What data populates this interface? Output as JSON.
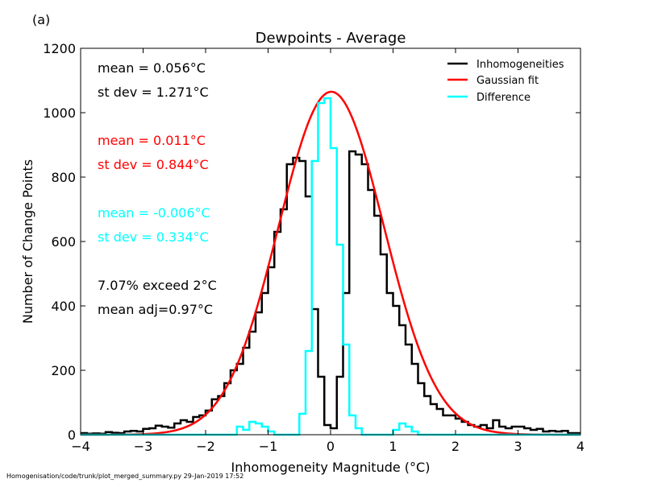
{
  "panel_label": "(a)",
  "footer": "Homogenisation/code/trunk/plot_merged_summary.py   29-Jan-2019 17:52",
  "stats": [
    {
      "text": "mean =  0.056$^\\circ$C",
      "display": "mean =  0.056°C",
      "color": "#000000"
    },
    {
      "text": "st dev =  1.271°C",
      "display": "st dev =  1.271°C",
      "color": "#000000"
    },
    {
      "text": "mean =  0.011°C",
      "display": "mean =  0.011°C",
      "color": "#ff0000"
    },
    {
      "text": "st dev =  0.844°C",
      "display": "st dev =  0.844°C",
      "color": "#ff0000"
    },
    {
      "text": "mean = -0.006°C",
      "display": "mean = -0.006°C",
      "color": "#00ffff"
    },
    {
      "text": "st dev =  0.334°C",
      "display": "st dev =  0.334°C",
      "color": "#00ffff"
    },
    {
      "text": "7.07% exceed 2°C",
      "display": "7.07% exceed 2°C",
      "color": "#000000"
    },
    {
      "text": "mean adj=0.97°C",
      "display": "mean adj=0.97°C",
      "color": "#000000"
    }
  ],
  "chart_data": {
    "type": "line",
    "title": "Dewpoints - Average",
    "xlabel": "Inhomogeneity Magnitude (°C)",
    "ylabel": "Number of Change Points",
    "xlim": [
      -4,
      4
    ],
    "ylim": [
      0,
      1200
    ],
    "xticks": [
      -4,
      -3,
      -2,
      -1,
      0,
      1,
      2,
      3,
      4
    ],
    "xtick_labels": [
      "−4",
      "−3",
      "−2",
      "−1",
      "0",
      "1",
      "2",
      "3",
      "4"
    ],
    "yticks": [
      0,
      200,
      400,
      600,
      800,
      1000,
      1200
    ],
    "ytick_labels": [
      "0",
      "200",
      "400",
      "600",
      "800",
      "1000",
      "1200"
    ],
    "legend_position": "top-right",
    "bin_edges": [
      -4.0,
      -3.9,
      -3.8,
      -3.7,
      -3.6,
      -3.5,
      -3.4,
      -3.3,
      -3.2,
      -3.1,
      -3.0,
      -2.9,
      -2.8,
      -2.7,
      -2.6,
      -2.5,
      -2.4,
      -2.3,
      -2.2,
      -2.1,
      -2.0,
      -1.9,
      -1.8,
      -1.7,
      -1.6,
      -1.5,
      -1.4,
      -1.3,
      -1.2,
      -1.1,
      -1.0,
      -0.9,
      -0.8,
      -0.7,
      -0.6,
      -0.5,
      -0.4,
      -0.3,
      -0.2,
      -0.1,
      0.0,
      0.1,
      0.2,
      0.3,
      0.4,
      0.5,
      0.6,
      0.7,
      0.8,
      0.9,
      1.0,
      1.1,
      1.2,
      1.3,
      1.4,
      1.5,
      1.6,
      1.7,
      1.8,
      1.9,
      2.0,
      2.1,
      2.2,
      2.3,
      2.4,
      2.5,
      2.6,
      2.7,
      2.8,
      2.9,
      3.0,
      3.1,
      3.2,
      3.3,
      3.4,
      3.5,
      3.6,
      3.7,
      3.8,
      3.9,
      4.0
    ],
    "series": [
      {
        "name": "Inhomogeneities",
        "kind": "step",
        "color": "#000000",
        "values": [
          5,
          3,
          4,
          3,
          8,
          6,
          5,
          10,
          12,
          10,
          18,
          20,
          28,
          25,
          22,
          35,
          45,
          40,
          55,
          60,
          75,
          110,
          120,
          160,
          200,
          220,
          270,
          320,
          380,
          440,
          520,
          630,
          700,
          840,
          860,
          850,
          740,
          390,
          180,
          30,
          20,
          180,
          440,
          880,
          870,
          840,
          760,
          680,
          560,
          440,
          400,
          340,
          280,
          220,
          160,
          120,
          95,
          80,
          60,
          60,
          50,
          40,
          30,
          25,
          30,
          20,
          45,
          25,
          20,
          25,
          25,
          20,
          15,
          18,
          10,
          12,
          10,
          12,
          5,
          5
        ]
      },
      {
        "name": "Gaussian fit",
        "kind": "curve",
        "color": "#ff0000",
        "amplitude": 1065,
        "mean": 0.011,
        "stdev": 0.844
      },
      {
        "name": "Difference",
        "kind": "step",
        "color": "#00ffff",
        "values": [
          0,
          0,
          0,
          0,
          0,
          0,
          0,
          0,
          0,
          0,
          0,
          0,
          0,
          0,
          0,
          0,
          0,
          0,
          0,
          0,
          0,
          0,
          0,
          0,
          0,
          25,
          15,
          40,
          35,
          25,
          10,
          0,
          0,
          0,
          0,
          65,
          260,
          850,
          1030,
          1045,
          890,
          590,
          280,
          60,
          20,
          0,
          0,
          0,
          0,
          0,
          15,
          35,
          25,
          10,
          0,
          0,
          0,
          0,
          0,
          0,
          0,
          0,
          0,
          0,
          0,
          0,
          0,
          0,
          0,
          0,
          0,
          0,
          0,
          0,
          0,
          0,
          0,
          0,
          0,
          0
        ]
      }
    ]
  }
}
